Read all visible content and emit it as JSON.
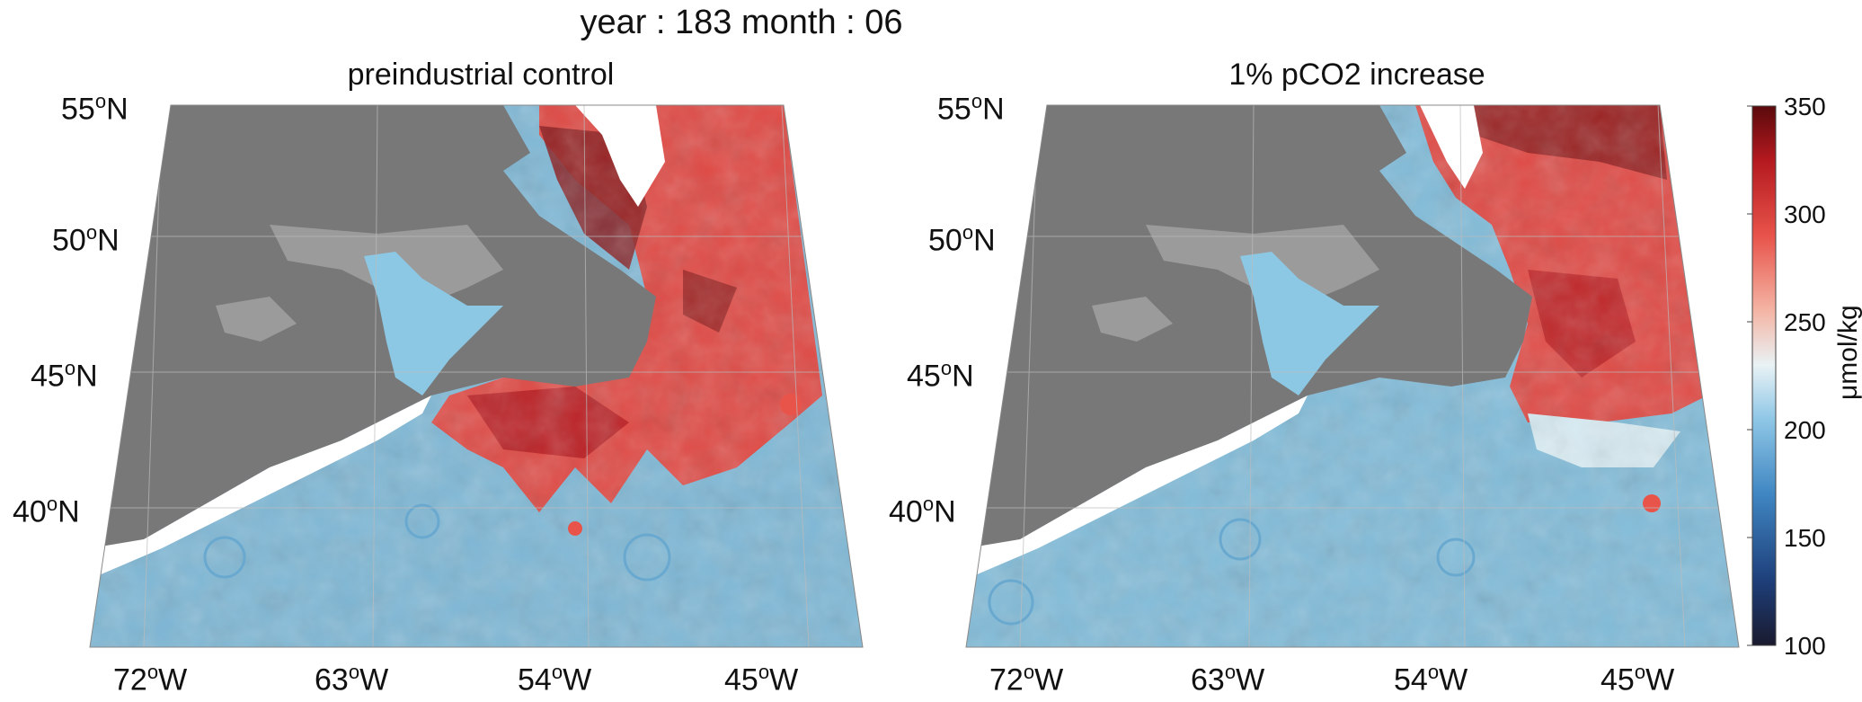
{
  "figure": {
    "title": "year : 183 month : 06"
  },
  "panels": [
    {
      "title": "preindustrial control",
      "lat_labels": [
        {
          "deg": "55",
          "hemi": "N"
        },
        {
          "deg": "50",
          "hemi": "N"
        },
        {
          "deg": "45",
          "hemi": "N"
        },
        {
          "deg": "40",
          "hemi": "N"
        }
      ],
      "lon_labels": [
        {
          "deg": "72",
          "hemi": "W"
        },
        {
          "deg": "63",
          "hemi": "W"
        },
        {
          "deg": "54",
          "hemi": "W"
        },
        {
          "deg": "45",
          "hemi": "W"
        }
      ]
    },
    {
      "title": "1% pCO2 increase",
      "lat_labels": [
        {
          "deg": "55",
          "hemi": "N"
        },
        {
          "deg": "50",
          "hemi": "N"
        },
        {
          "deg": "45",
          "hemi": "N"
        },
        {
          "deg": "40",
          "hemi": "N"
        }
      ],
      "lon_labels": [
        {
          "deg": "72",
          "hemi": "W"
        },
        {
          "deg": "63",
          "hemi": "W"
        },
        {
          "deg": "54",
          "hemi": "W"
        },
        {
          "deg": "45",
          "hemi": "W"
        }
      ]
    }
  ],
  "colorbar": {
    "unit": "μmol/kg",
    "ticks": [
      "350",
      "300",
      "250",
      "200",
      "150",
      "100"
    ],
    "range": [
      100,
      350
    ],
    "colors": [
      "#1a1a2e",
      "#1e3f7a",
      "#3f86c2",
      "#8fc7e6",
      "#e9f2f5",
      "#f4b5a5",
      "#e8534a",
      "#b3191f",
      "#5a0a0c"
    ]
  },
  "colors": {
    "land": "#787878",
    "shelf": "#9b9b9b",
    "ocean_cold": "#7fb8d6",
    "ocean_warm": "#e04a45",
    "ocean_dark": "#8a1b1d"
  }
}
